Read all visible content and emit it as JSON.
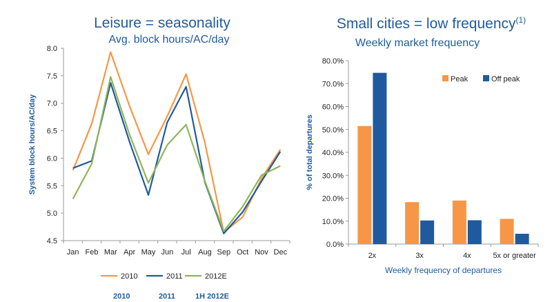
{
  "left_panel": {
    "heading": "Leisure = seasonality",
    "subheading": "Avg. block hours/AC/day",
    "footer_labels": [
      "2010",
      "2011",
      "1H 2012E"
    ]
  },
  "right_panel": {
    "heading": "Small cities = low frequency",
    "heading_superscript": "(1)",
    "subheading": "Weekly market frequency"
  },
  "chart_data": [
    {
      "type": "line",
      "title": "Avg. block hours/AC/day",
      "xlabel": "",
      "ylabel": "System block hours/AC/day",
      "categories": [
        "Jan",
        "Feb",
        "Mar",
        "Apr",
        "May",
        "Jun",
        "Jul",
        "Aug",
        "Sep",
        "Oct",
        "Nov",
        "Dec"
      ],
      "ylim": [
        4.5,
        8.0
      ],
      "yticks": [
        "4.5",
        "5.0",
        "5.5",
        "6.0",
        "6.5",
        "7.0",
        "7.5",
        "8.0"
      ],
      "grid": false,
      "legend_position": "bottom",
      "series": [
        {
          "name": "2010",
          "color": "#f79646",
          "values": [
            5.78,
            6.63,
            7.93,
            6.95,
            6.07,
            6.76,
            7.53,
            6.28,
            4.65,
            4.93,
            5.63,
            6.16
          ]
        },
        {
          "name": "2011",
          "color": "#1f5a9e",
          "values": [
            5.82,
            5.95,
            7.37,
            6.3,
            5.33,
            6.65,
            7.3,
            5.56,
            4.63,
            5.02,
            5.58,
            6.12
          ]
        },
        {
          "name": "2012E",
          "color": "#8db657",
          "values": [
            5.26,
            5.9,
            7.48,
            6.43,
            5.55,
            6.24,
            6.61,
            5.58,
            4.67,
            5.12,
            5.69,
            5.86
          ]
        }
      ]
    },
    {
      "type": "bar",
      "title": "Weekly market frequency",
      "xlabel": "Weekly frequency of departures",
      "ylabel": "% of total departures",
      "categories": [
        "2x",
        "3x",
        "4x",
        "5x or greater"
      ],
      "ylim": [
        0,
        80
      ],
      "yticks": [
        "0.0%",
        "10.0%",
        "20.0%",
        "30.0%",
        "40.0%",
        "50.0%",
        "60.0%",
        "70.0%",
        "80.0%"
      ],
      "grid": false,
      "legend_position": "top-right",
      "series": [
        {
          "name": "Peak",
          "color": "#f79646",
          "values": [
            51.5,
            18.3,
            19.0,
            11.0
          ]
        },
        {
          "name": "Off peak",
          "color": "#1f5a9e",
          "values": [
            74.7,
            10.3,
            10.4,
            4.5
          ]
        }
      ]
    }
  ]
}
